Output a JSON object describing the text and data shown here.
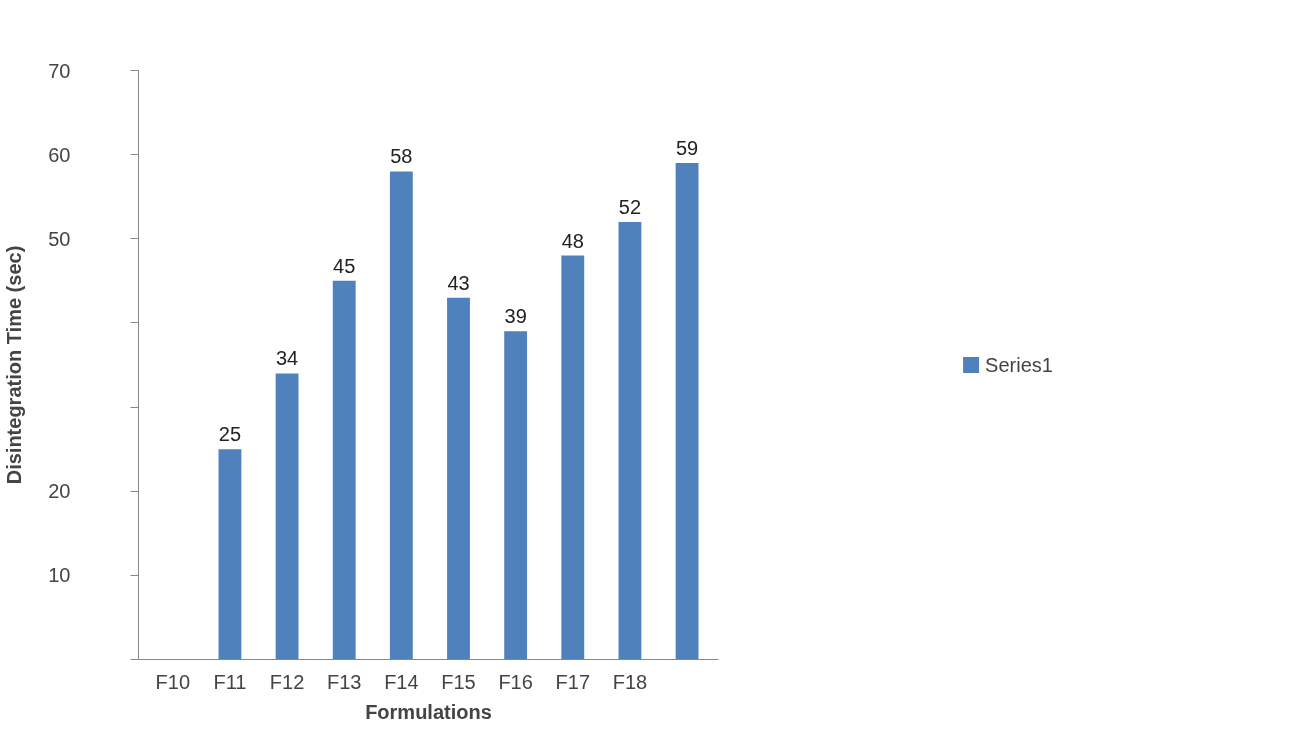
{
  "chart_data": {
    "type": "bar",
    "xlabel": "Formulations",
    "ylabel": "Disintegration Time (sec)",
    "categories": [
      "F10",
      "F11",
      "F12",
      "F13",
      "F14",
      "F15",
      "F16",
      "F17",
      "F18",
      null
    ],
    "series": [
      {
        "name": "Series1",
        "color": "#4f81bd",
        "values": [
          null,
          25,
          34,
          45,
          58,
          43,
          39,
          48,
          52,
          59
        ]
      }
    ],
    "ylim": [
      0,
      70
    ],
    "yticks": [
      {
        "value": 0,
        "label": null
      },
      {
        "value": 10,
        "label": "10"
      },
      {
        "value": 20,
        "label": "20"
      },
      {
        "value": 30,
        "label": null
      },
      {
        "value": 40,
        "label": null
      },
      {
        "value": 50,
        "label": "50"
      },
      {
        "value": 60,
        "label": "60"
      },
      {
        "value": 70,
        "label": "70"
      }
    ],
    "data_labels": true,
    "grid": false,
    "legend": "right"
  }
}
